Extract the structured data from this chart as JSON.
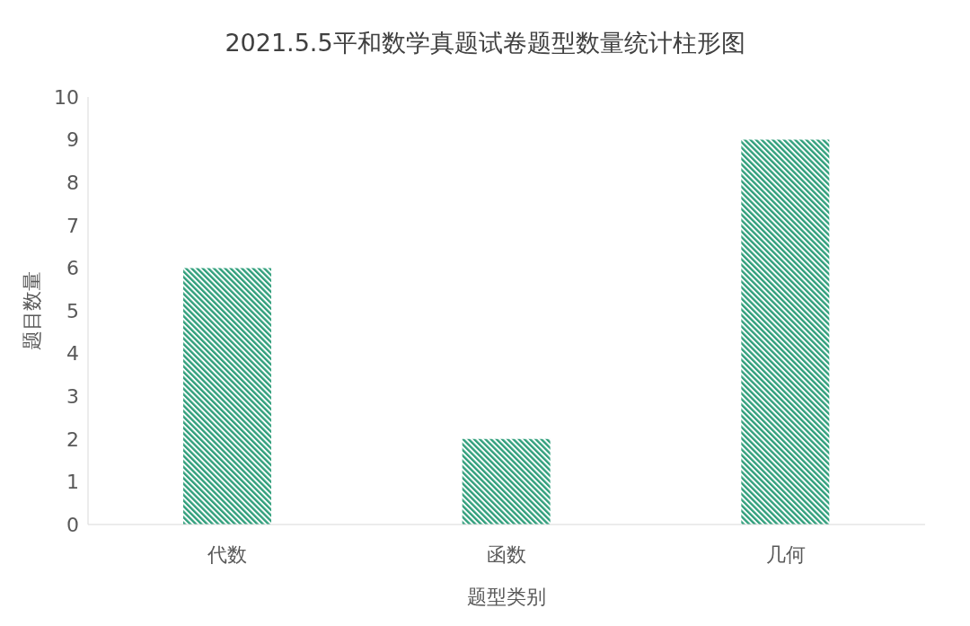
{
  "chart_data": {
    "type": "bar",
    "title": "2021.5.5平和数学真题试卷题型数量统计柱形图",
    "xlabel": "题型类别",
    "ylabel": "题目数量",
    "categories": [
      "代数",
      "函数",
      "几何"
    ],
    "values": [
      6,
      2,
      9
    ],
    "color": "#2e9e7a",
    "ylim": [
      0,
      10
    ],
    "yticks": [
      0,
      1,
      2,
      3,
      4,
      5,
      6,
      7,
      8,
      9,
      10
    ]
  }
}
